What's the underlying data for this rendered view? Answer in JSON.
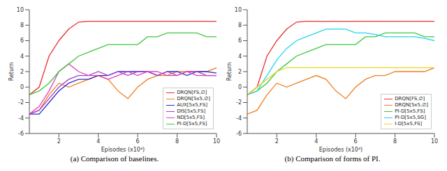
{
  "chart_data": [
    {
      "type": "line",
      "caption": "(a) Comparison of baselines.",
      "xlabel": "Episodes (x10⁴)",
      "ylabel": "Return",
      "x": [
        0.5,
        1,
        1.5,
        2,
        2.5,
        3,
        3.5,
        4,
        4.5,
        5,
        5.5,
        6,
        6.5,
        7,
        7.5,
        8,
        8.5,
        9,
        9.5,
        10
      ],
      "xlim": [
        0.5,
        10
      ],
      "xticks": [
        2,
        4,
        6,
        8,
        10
      ],
      "ylim": [
        -6,
        10
      ],
      "yticks": [
        -6,
        -4,
        -2,
        0,
        2,
        4,
        6,
        8,
        10
      ],
      "grid": false,
      "legend": "lower right",
      "series": [
        {
          "name": "DRQN[FS,∅]",
          "color": "#e8312f",
          "values": [
            -1,
            0,
            4,
            6,
            7.5,
            8.4,
            8.5,
            8.5,
            8.5,
            8.5,
            8.5,
            8.5,
            8.5,
            8.5,
            8.5,
            8.5,
            8.5,
            8.5,
            8.5,
            8.5
          ]
        },
        {
          "name": "DRQN[5x5,∅]",
          "color": "#f07f1e",
          "values": [
            -3.5,
            -3,
            -1,
            0.5,
            0,
            0.5,
            1,
            1.5,
            1,
            -0.5,
            -1.5,
            0,
            1,
            1.5,
            1.5,
            2,
            2,
            2,
            2,
            2.5
          ]
        },
        {
          "name": "AUX[5x5,FS]",
          "color": "#2c2ccc",
          "values": [
            -3.5,
            -3.5,
            -2,
            -0.5,
            0.5,
            1,
            1,
            1.5,
            1.5,
            2,
            2,
            2,
            2,
            1.5,
            2,
            2,
            1.5,
            2,
            2,
            1.8
          ]
        },
        {
          "name": "DIS[5x5,FS]",
          "color": "#a040d0",
          "values": [
            -3.5,
            -3,
            -1.5,
            0,
            1,
            1.5,
            1.5,
            2,
            1.5,
            2,
            1.5,
            2,
            2,
            1.5,
            2,
            1.5,
            2,
            2,
            1.5,
            1.5
          ]
        },
        {
          "name": "ND[5x5,FS]",
          "color": "#e040c0",
          "values": [
            -3.5,
            -2.5,
            -0.5,
            2,
            3,
            2,
            1.5,
            1.5,
            1,
            1.5,
            2,
            1.5,
            2,
            2,
            1.5,
            1.5,
            2,
            1.5,
            1.5,
            1.5
          ]
        },
        {
          "name": "PI-D[5x5,FS]",
          "color": "#3cc83c",
          "values": [
            -1,
            -0.5,
            0.5,
            2,
            3,
            4,
            4.5,
            5,
            5.5,
            5.5,
            5.5,
            5.5,
            6.5,
            6.5,
            7,
            7,
            7,
            7,
            6.5,
            6.5
          ]
        }
      ]
    },
    {
      "type": "line",
      "caption": "(b) Comparison of forms of PI.",
      "xlabel": "Episodes (x10⁴)",
      "ylabel": "Return",
      "x": [
        0.5,
        1,
        1.5,
        2,
        2.5,
        3,
        3.5,
        4,
        4.5,
        5,
        5.5,
        6,
        6.5,
        7,
        7.5,
        8,
        8.5,
        9,
        9.5,
        10
      ],
      "xlim": [
        0.5,
        10
      ],
      "xticks": [
        2,
        4,
        6,
        8,
        10
      ],
      "ylim": [
        -6,
        10
      ],
      "yticks": [
        -6,
        -4,
        -2,
        0,
        2,
        4,
        6,
        8,
        10
      ],
      "grid": false,
      "legend": "lower right",
      "series": [
        {
          "name": "DRQN[FS,∅]",
          "color": "#e8312f",
          "values": [
            -1,
            0,
            4,
            6,
            7.5,
            8.4,
            8.5,
            8.5,
            8.5,
            8.5,
            8.5,
            8.5,
            8.5,
            8.5,
            8.5,
            8.5,
            8.5,
            8.5,
            8.5,
            8.5
          ]
        },
        {
          "name": "DRQN[5x5,∅]",
          "color": "#f07f1e",
          "values": [
            -3.5,
            -3,
            -1,
            0.5,
            0,
            0.5,
            1,
            1.5,
            1,
            -0.5,
            -1.5,
            0,
            1,
            1.5,
            1.5,
            2,
            2,
            2,
            2,
            2.5
          ]
        },
        {
          "name": "PI-D[5x5,FS]",
          "color": "#3cc83c",
          "values": [
            -1,
            -0.5,
            0.5,
            2,
            3,
            4,
            4.5,
            5,
            5.5,
            5.5,
            5.5,
            5.5,
            6.5,
            6.5,
            7,
            7,
            7,
            7,
            6.5,
            6.5
          ]
        },
        {
          "name": "PI-D[5x5,SG]",
          "color": "#22d3ee",
          "values": [
            -1,
            -0.5,
            1.5,
            3.5,
            5,
            6,
            6.5,
            7,
            7.5,
            7.5,
            7.5,
            7,
            7,
            6.8,
            6.5,
            6.5,
            6.5,
            6.5,
            6.3,
            6
          ]
        },
        {
          "name": "I-D[5x5,FS]",
          "color": "#e8d820",
          "values": [
            -1,
            0,
            1,
            2,
            2.5,
            2.5,
            2.5,
            2.5,
            2.5,
            2.5,
            2.5,
            2.5,
            2.5,
            2.5,
            2.5,
            2.5,
            2.5,
            2.5,
            2.5,
            2.5
          ]
        }
      ]
    }
  ]
}
